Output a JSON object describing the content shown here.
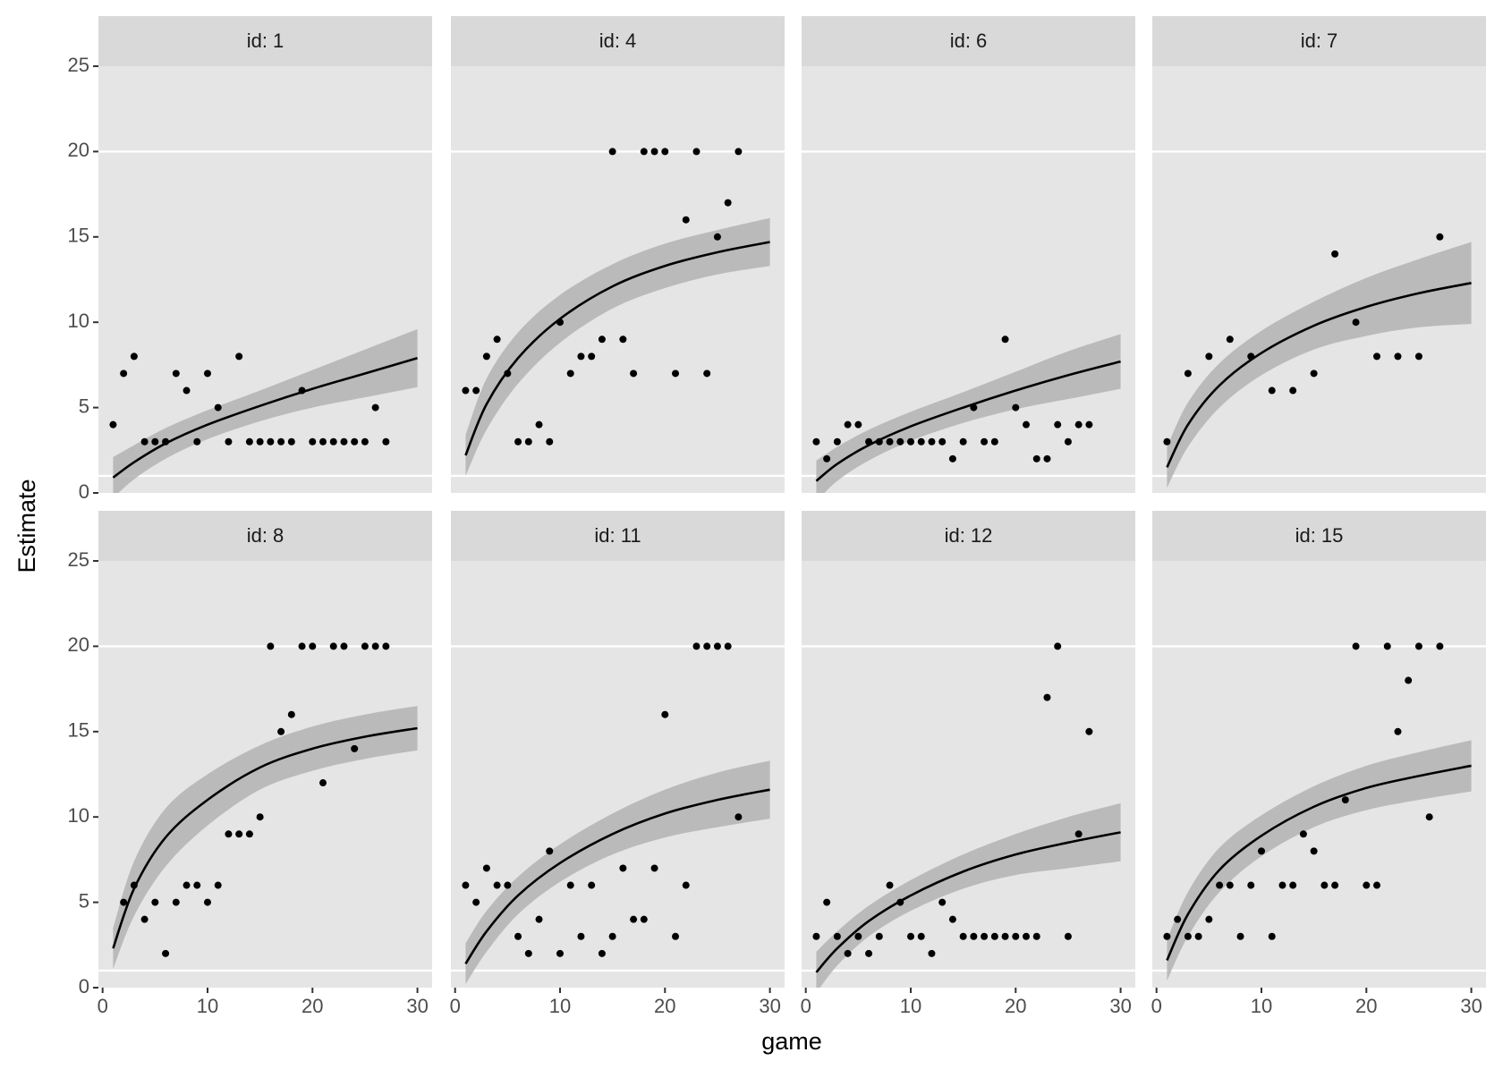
{
  "chart_data": {
    "type": "facet-scatter-fit",
    "xlabel": "game",
    "ylabel": "Estimate",
    "xlim": [
      -0.4,
      31.4
    ],
    "xticks": [
      0,
      10,
      20,
      30
    ],
    "ylim": [
      0,
      25
    ],
    "yticks": [
      0,
      5,
      10,
      15,
      20,
      25
    ],
    "hlines": [
      1,
      20
    ],
    "point_color": "#000000",
    "line_color": "#000000",
    "ribbon_color": "#b3b3b3",
    "facets": [
      {
        "title": "id: 1",
        "x": [
          1,
          2,
          3,
          4,
          5,
          6,
          7,
          8,
          9,
          10,
          11,
          12,
          13,
          14,
          15,
          16,
          17,
          18,
          19,
          20,
          21,
          22,
          23,
          24,
          25,
          26,
          27
        ],
        "values": [
          4,
          7,
          8,
          3,
          3,
          3,
          7,
          6,
          3,
          7,
          5,
          3,
          8,
          3,
          3,
          3,
          3,
          3,
          6,
          3,
          3,
          3,
          3,
          3,
          3,
          5,
          3
        ],
        "fit": {
          "x": [
            1,
            3,
            6,
            10,
            15,
            20,
            25,
            30
          ],
          "values": [
            0.9,
            1.8,
            2.9,
            4.0,
            5.1,
            6.1,
            7.0,
            7.9
          ],
          "lower": [
            -0.3,
            0.8,
            2.0,
            3.15,
            4.2,
            5.0,
            5.6,
            6.2
          ],
          "upper": [
            2.1,
            2.8,
            3.8,
            4.85,
            6.0,
            7.2,
            8.4,
            9.6
          ]
        }
      },
      {
        "title": "id: 4",
        "x": [
          1,
          2,
          3,
          4,
          5,
          6,
          7,
          8,
          9,
          10,
          11,
          12,
          13,
          14,
          15,
          16,
          17,
          18,
          19,
          20,
          21,
          22,
          23,
          24,
          25,
          26,
          27
        ],
        "values": [
          6,
          6,
          8,
          9,
          7,
          3,
          3,
          4,
          3,
          10,
          7,
          8,
          8,
          9,
          20,
          9,
          7,
          20,
          20,
          20,
          7,
          16,
          20,
          7,
          15,
          17,
          20
        ],
        "fit": {
          "x": [
            1,
            3,
            6,
            10,
            15,
            20,
            25,
            30
          ],
          "values": [
            2.2,
            5.2,
            7.9,
            10.2,
            12.1,
            13.3,
            14.1,
            14.7
          ],
          "lower": [
            1.0,
            3.7,
            6.4,
            8.8,
            10.8,
            12.0,
            12.8,
            13.3
          ],
          "upper": [
            3.4,
            6.7,
            9.4,
            11.6,
            13.4,
            14.6,
            15.4,
            16.1
          ]
        }
      },
      {
        "title": "id: 6",
        "x": [
          1,
          2,
          3,
          4,
          5,
          6,
          7,
          8,
          9,
          10,
          11,
          12,
          13,
          14,
          15,
          16,
          17,
          18,
          19,
          20,
          21,
          22,
          23,
          24,
          25,
          26,
          27
        ],
        "values": [
          3,
          2,
          3,
          4,
          4,
          3,
          3,
          3,
          3,
          3,
          3,
          3,
          3,
          2,
          3,
          5,
          3,
          3,
          9,
          5,
          4,
          2,
          2,
          4,
          3,
          4,
          4
        ],
        "fit": {
          "x": [
            1,
            3,
            6,
            10,
            15,
            20,
            25,
            30
          ],
          "values": [
            0.7,
            1.7,
            2.8,
            3.9,
            5.0,
            6.0,
            6.9,
            7.7
          ],
          "lower": [
            -0.5,
            0.7,
            1.9,
            3.05,
            4.1,
            4.9,
            5.5,
            6.1
          ],
          "upper": [
            1.9,
            2.7,
            3.7,
            4.75,
            5.9,
            7.1,
            8.3,
            9.3
          ]
        }
      },
      {
        "title": "id: 7",
        "x": [
          1,
          3,
          5,
          7,
          9,
          11,
          13,
          15,
          17,
          19,
          21,
          23,
          25,
          27
        ],
        "values": [
          3,
          7,
          8,
          9,
          8,
          6,
          6,
          7,
          14,
          10,
          8,
          8,
          8,
          15
        ],
        "fit": {
          "x": [
            1,
            3,
            6,
            10,
            15,
            20,
            25,
            30
          ],
          "values": [
            1.5,
            4.0,
            6.3,
            8.2,
            9.8,
            10.9,
            11.7,
            12.3
          ],
          "lower": [
            0.3,
            2.7,
            5.0,
            6.9,
            8.4,
            9.2,
            9.7,
            9.9
          ],
          "upper": [
            2.7,
            5.3,
            7.6,
            9.5,
            11.2,
            12.6,
            13.7,
            14.7
          ]
        }
      },
      {
        "title": "id: 8",
        "x": [
          2,
          3,
          4,
          5,
          6,
          7,
          8,
          9,
          10,
          11,
          12,
          13,
          14,
          15,
          16,
          17,
          18,
          19,
          20,
          21,
          22,
          23,
          24,
          25,
          26,
          27
        ],
        "values": [
          5,
          6,
          4,
          5,
          2,
          5,
          6,
          6,
          5,
          6,
          9,
          9,
          9,
          10,
          20,
          15,
          16,
          20,
          20,
          12,
          20,
          20,
          14,
          20,
          20,
          20
        ],
        "fit": {
          "x": [
            1,
            3,
            6,
            10,
            15,
            20,
            25,
            30
          ],
          "values": [
            2.3,
            5.8,
            8.8,
            11.0,
            12.9,
            14.0,
            14.7,
            15.2
          ],
          "lower": [
            1.1,
            4.2,
            7.1,
            9.5,
            11.6,
            12.7,
            13.4,
            13.9
          ],
          "upper": [
            3.5,
            7.4,
            10.5,
            12.5,
            14.2,
            15.3,
            16.0,
            16.5
          ]
        }
      },
      {
        "title": "id: 11",
        "x": [
          1,
          2,
          3,
          4,
          5,
          6,
          7,
          8,
          9,
          10,
          11,
          12,
          13,
          14,
          15,
          16,
          17,
          18,
          19,
          20,
          21,
          22,
          23,
          24,
          25,
          26,
          27
        ],
        "values": [
          6,
          5,
          7,
          6,
          6,
          3,
          2,
          4,
          8,
          2,
          6,
          3,
          6,
          2,
          3,
          7,
          4,
          4,
          7,
          16,
          3,
          6,
          20,
          20,
          20,
          20,
          10
        ],
        "fit": {
          "x": [
            1,
            3,
            6,
            10,
            15,
            20,
            25,
            30
          ],
          "values": [
            1.4,
            3.3,
            5.4,
            7.3,
            9.0,
            10.2,
            11.0,
            11.6
          ],
          "lower": [
            0.2,
            2.1,
            4.3,
            6.2,
            7.8,
            8.8,
            9.4,
            9.9
          ],
          "upper": [
            2.6,
            4.5,
            6.5,
            8.4,
            10.2,
            11.6,
            12.6,
            13.3
          ]
        }
      },
      {
        "title": "id: 12",
        "x": [
          1,
          2,
          3,
          4,
          5,
          6,
          7,
          8,
          9,
          10,
          11,
          12,
          13,
          14,
          15,
          16,
          17,
          18,
          19,
          20,
          21,
          22,
          23,
          24,
          25,
          26,
          27
        ],
        "values": [
          3,
          5,
          3,
          2,
          3,
          2,
          3,
          6,
          5,
          3,
          3,
          2,
          5,
          4,
          3,
          3,
          3,
          3,
          3,
          3,
          3,
          3,
          17,
          20,
          3,
          9,
          15
        ],
        "fit": {
          "x": [
            1,
            3,
            6,
            10,
            15,
            20,
            25,
            30
          ],
          "values": [
            0.9,
            2.3,
            3.9,
            5.4,
            6.8,
            7.8,
            8.5,
            9.1
          ],
          "lower": [
            -0.3,
            1.3,
            3.0,
            4.5,
            5.8,
            6.6,
            7.0,
            7.4
          ],
          "upper": [
            2.1,
            3.3,
            4.8,
            6.3,
            7.8,
            9.0,
            10.0,
            10.8
          ]
        }
      },
      {
        "title": "id: 15",
        "x": [
          1,
          2,
          3,
          4,
          5,
          6,
          7,
          8,
          9,
          10,
          11,
          12,
          13,
          14,
          15,
          16,
          17,
          18,
          19,
          20,
          21,
          22,
          23,
          24,
          25,
          26,
          27
        ],
        "values": [
          3,
          4,
          3,
          3,
          4,
          6,
          6,
          3,
          6,
          8,
          3,
          6,
          6,
          9,
          8,
          6,
          6,
          11,
          20,
          6,
          6,
          20,
          15,
          18,
          20,
          10,
          20
        ],
        "fit": {
          "x": [
            1,
            3,
            6,
            10,
            15,
            20,
            25,
            30
          ],
          "values": [
            1.6,
            4.3,
            6.9,
            8.9,
            10.6,
            11.7,
            12.4,
            13.0
          ],
          "lower": [
            0.4,
            3.0,
            5.6,
            7.7,
            9.4,
            10.4,
            11.0,
            11.5
          ],
          "upper": [
            2.8,
            5.6,
            8.2,
            10.1,
            11.8,
            13.0,
            13.8,
            14.5
          ]
        }
      }
    ]
  }
}
